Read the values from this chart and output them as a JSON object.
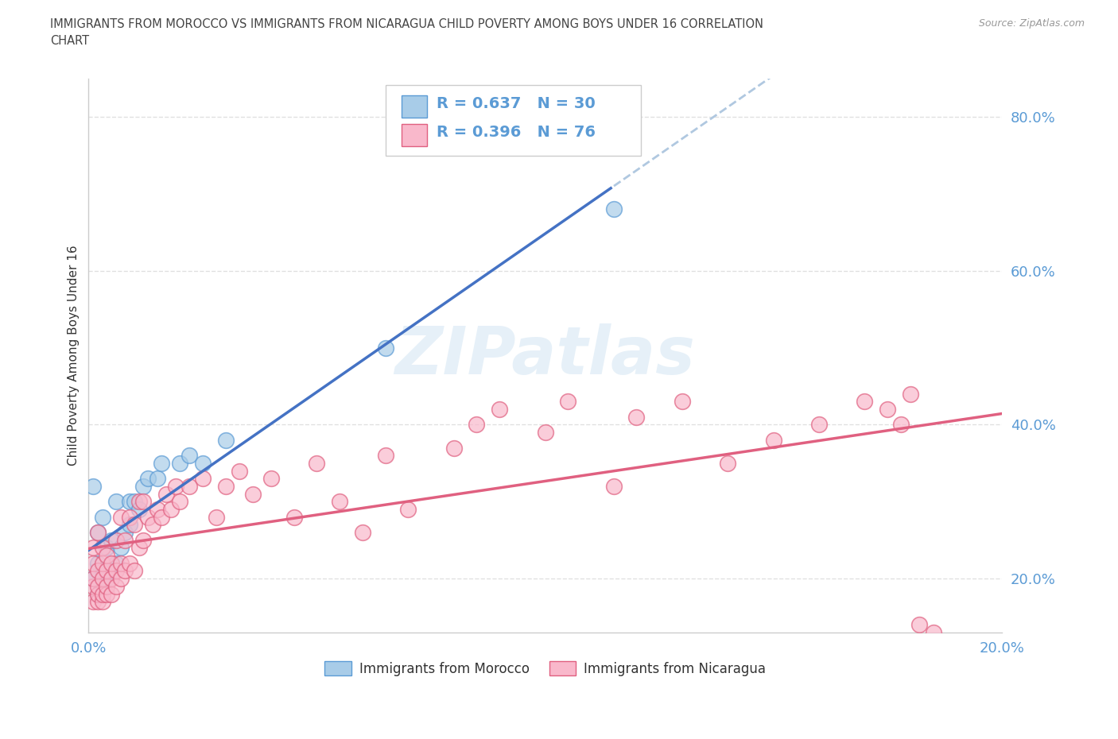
{
  "title": "IMMIGRANTS FROM MOROCCO VS IMMIGRANTS FROM NICARAGUA CHILD POVERTY AMONG BOYS UNDER 16 CORRELATION\nCHART",
  "source": "Source: ZipAtlas.com",
  "ylabel": "Child Poverty Among Boys Under 16",
  "xlim": [
    0.0,
    0.2
  ],
  "ylim": [
    0.13,
    0.85
  ],
  "yticks": [
    0.2,
    0.4,
    0.6,
    0.8
  ],
  "ytick_labels": [
    "20.0%",
    "40.0%",
    "60.0%",
    "80.0%"
  ],
  "xtick_labels": [
    "0.0%",
    "",
    "",
    "",
    "",
    "20.0%"
  ],
  "morocco_R": 0.637,
  "morocco_N": 30,
  "nicaragua_R": 0.396,
  "nicaragua_N": 76,
  "morocco_color": "#a8cce8",
  "nicaragua_color": "#f9b8cb",
  "morocco_edge_color": "#5b9bd5",
  "nicaragua_edge_color": "#e06080",
  "trendline_morocco_color": "#4472c4",
  "trendline_nicaragua_color": "#e06080",
  "trendline_dashed_color": "#b0c8e0",
  "background_color": "#ffffff",
  "grid_color": "#dddddd",
  "axis_label_color": "#5b9bd5",
  "watermark": "ZIPatlas",
  "legend_text_color": "#5b9bd5",
  "title_color": "#444444",
  "morocco_x": [
    0.001,
    0.001,
    0.002,
    0.002,
    0.002,
    0.003,
    0.003,
    0.003,
    0.004,
    0.004,
    0.005,
    0.005,
    0.006,
    0.006,
    0.007,
    0.008,
    0.009,
    0.009,
    0.01,
    0.011,
    0.012,
    0.013,
    0.015,
    0.016,
    0.02,
    0.022,
    0.025,
    0.03,
    0.065,
    0.115
  ],
  "morocco_y": [
    0.2,
    0.32,
    0.18,
    0.22,
    0.26,
    0.19,
    0.21,
    0.28,
    0.2,
    0.24,
    0.21,
    0.25,
    0.22,
    0.3,
    0.24,
    0.26,
    0.27,
    0.3,
    0.3,
    0.29,
    0.32,
    0.33,
    0.33,
    0.35,
    0.35,
    0.36,
    0.35,
    0.38,
    0.5,
    0.68
  ],
  "nicaragua_x": [
    0.001,
    0.001,
    0.001,
    0.001,
    0.001,
    0.002,
    0.002,
    0.002,
    0.002,
    0.002,
    0.003,
    0.003,
    0.003,
    0.003,
    0.003,
    0.004,
    0.004,
    0.004,
    0.004,
    0.005,
    0.005,
    0.005,
    0.006,
    0.006,
    0.006,
    0.007,
    0.007,
    0.007,
    0.008,
    0.008,
    0.009,
    0.009,
    0.01,
    0.01,
    0.011,
    0.011,
    0.012,
    0.012,
    0.013,
    0.014,
    0.015,
    0.016,
    0.017,
    0.018,
    0.019,
    0.02,
    0.022,
    0.025,
    0.028,
    0.03,
    0.033,
    0.036,
    0.04,
    0.045,
    0.05,
    0.055,
    0.06,
    0.065,
    0.07,
    0.08,
    0.085,
    0.09,
    0.1,
    0.105,
    0.115,
    0.12,
    0.13,
    0.14,
    0.15,
    0.16,
    0.17,
    0.175,
    0.178,
    0.18,
    0.182,
    0.185
  ],
  "nicaragua_y": [
    0.17,
    0.19,
    0.2,
    0.22,
    0.24,
    0.17,
    0.18,
    0.19,
    0.21,
    0.26,
    0.17,
    0.18,
    0.2,
    0.22,
    0.24,
    0.18,
    0.19,
    0.21,
    0.23,
    0.18,
    0.2,
    0.22,
    0.19,
    0.21,
    0.25,
    0.2,
    0.22,
    0.28,
    0.21,
    0.25,
    0.22,
    0.28,
    0.21,
    0.27,
    0.24,
    0.3,
    0.25,
    0.3,
    0.28,
    0.27,
    0.29,
    0.28,
    0.31,
    0.29,
    0.32,
    0.3,
    0.32,
    0.33,
    0.28,
    0.32,
    0.34,
    0.31,
    0.33,
    0.28,
    0.35,
    0.3,
    0.26,
    0.36,
    0.29,
    0.37,
    0.4,
    0.42,
    0.39,
    0.43,
    0.32,
    0.41,
    0.43,
    0.35,
    0.38,
    0.4,
    0.43,
    0.42,
    0.4,
    0.44,
    0.14,
    0.13
  ]
}
